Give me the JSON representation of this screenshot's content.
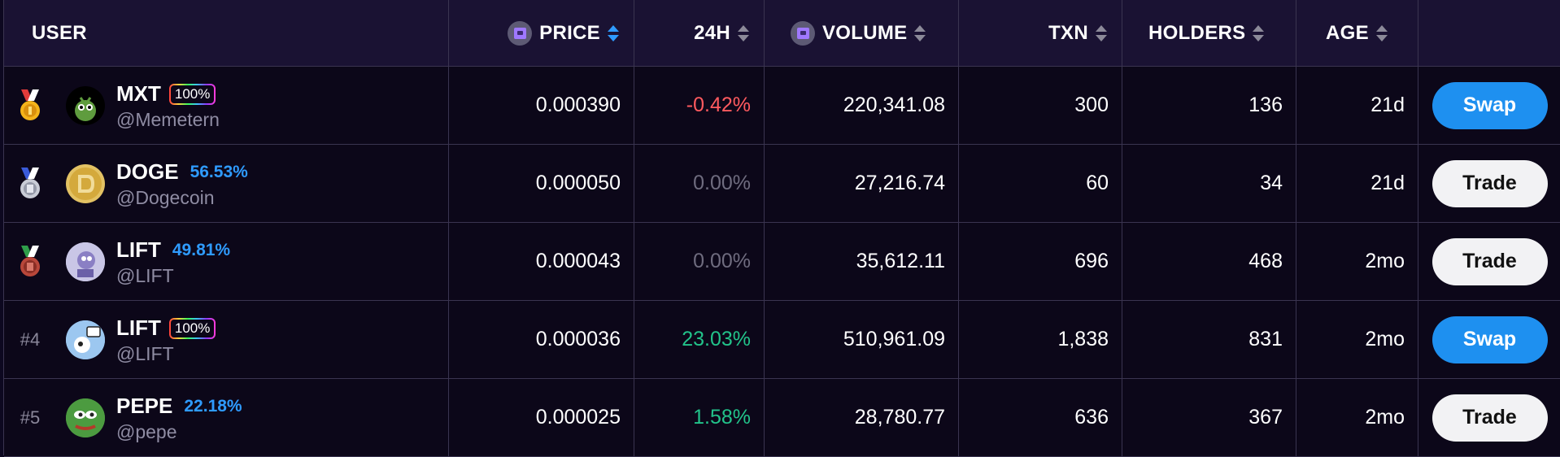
{
  "columns": {
    "user": "USER",
    "price": "PRICE",
    "change": "24H",
    "volume": "VOLUME",
    "txn": "TXN",
    "holders": "HOLDERS",
    "age": "AGE"
  },
  "rows": [
    {
      "rank": "",
      "medal": "gold-medal-icon",
      "ticker": "MXT",
      "pct": "100%",
      "handle": "@Memetern",
      "price": "0.000390",
      "change": "-0.42%",
      "volume": "220,341.08",
      "txn": "300",
      "holders": "136",
      "age": "21d",
      "action": "Swap"
    },
    {
      "rank": "",
      "medal": "silver-medal-icon",
      "ticker": "DOGE",
      "pct": "56.53%",
      "handle": "@Dogecoin",
      "price": "0.000050",
      "change": "0.00%",
      "volume": "27,216.74",
      "txn": "60",
      "holders": "34",
      "age": "21d",
      "action": "Trade"
    },
    {
      "rank": "",
      "medal": "bronze-medal-icon",
      "ticker": "LIFT",
      "pct": "49.81%",
      "handle": "@LIFT",
      "price": "0.000043",
      "change": "0.00%",
      "volume": "35,612.11",
      "txn": "696",
      "holders": "468",
      "age": "2mo",
      "action": "Trade"
    },
    {
      "rank": "#4",
      "medal": "",
      "ticker": "LIFT",
      "pct": "100%",
      "handle": "@LIFT",
      "price": "0.000036",
      "change": "23.03%",
      "volume": "510,961.09",
      "txn": "1,838",
      "holders": "831",
      "age": "2mo",
      "action": "Swap"
    },
    {
      "rank": "#5",
      "medal": "",
      "ticker": "PEPE",
      "pct": "22.18%",
      "handle": "@pepe",
      "price": "0.000025",
      "change": "1.58%",
      "volume": "28,780.77",
      "txn": "636",
      "holders": "367",
      "age": "2mo",
      "action": "Trade"
    }
  ],
  "colors": {
    "background": "#0c0719",
    "header_bg": "#1a1233",
    "accent_blue": "#2f9bff",
    "negative": "#ff5a5f",
    "positive": "#22c38a"
  }
}
